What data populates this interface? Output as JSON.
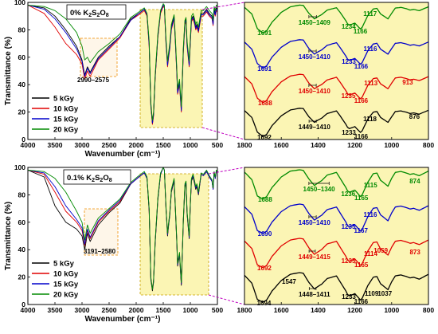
{
  "chart_data": [
    {
      "type": "line",
      "panel": "top-left",
      "title": "0% K2S2O8",
      "xlabel": "Wavenumber (cm⁻¹)",
      "ylabel": "Transmittance (%)",
      "xlim": [
        4000,
        500
      ],
      "ylim": [
        0,
        100
      ],
      "xticks": [
        4000,
        3500,
        3000,
        2500,
        2000,
        1500,
        1000,
        500
      ],
      "yticks": [
        0,
        20,
        40,
        60,
        80,
        100
      ],
      "box_label": "2990–2575",
      "x": [
        4000,
        3700,
        3500,
        3300,
        3100,
        3000,
        2950,
        2900,
        2850,
        2700,
        2500,
        2300,
        2100,
        1950,
        1850,
        1800,
        1760,
        1730,
        1700,
        1680,
        1650,
        1600,
        1550,
        1500,
        1480,
        1450,
        1420,
        1400,
        1380,
        1350,
        1300,
        1280,
        1250,
        1235,
        1200,
        1166,
        1130,
        1100,
        1080,
        1060,
        1020,
        1000,
        980,
        950,
        920,
        900,
        880,
        850,
        800,
        760,
        700,
        650,
        600,
        580,
        560,
        540,
        520,
        500
      ],
      "series": [
        {
          "name": "5 kGy",
          "color": "#000000",
          "values": [
            98,
            96,
            90,
            80,
            68,
            58,
            47,
            53,
            49,
            60,
            68,
            75,
            88,
            92,
            95,
            91,
            70,
            25,
            12,
            18,
            45,
            75,
            93,
            98,
            97,
            72,
            55,
            62,
            68,
            82,
            90,
            75,
            50,
            35,
            42,
            22,
            65,
            86,
            88,
            70,
            55,
            72,
            88,
            90,
            86,
            82,
            84,
            80,
            92,
            92,
            95,
            92,
            90,
            85,
            95,
            92,
            96,
            95
          ]
        },
        {
          "name": "10 kGy",
          "color": "#e00000",
          "values": [
            98,
            92,
            82,
            70,
            62,
            55,
            44,
            50,
            46,
            58,
            66,
            74,
            87,
            91,
            94,
            90,
            68,
            24,
            11,
            17,
            44,
            74,
            92,
            97,
            96,
            70,
            53,
            60,
            66,
            80,
            88,
            73,
            48,
            33,
            40,
            20,
            63,
            84,
            86,
            68,
            53,
            70,
            86,
            88,
            84,
            80,
            82,
            78,
            90,
            90,
            93,
            90,
            88,
            83,
            93,
            90,
            94,
            93
          ]
        },
        {
          "name": "15 kGy",
          "color": "#0000cc",
          "values": [
            98,
            95,
            88,
            78,
            66,
            57,
            46,
            52,
            48,
            59,
            67,
            75,
            87,
            92,
            95,
            91,
            69,
            25,
            12,
            18,
            45,
            75,
            93,
            98,
            97,
            71,
            54,
            61,
            67,
            81,
            89,
            74,
            49,
            34,
            41,
            21,
            64,
            85,
            87,
            69,
            54,
            71,
            87,
            89,
            85,
            81,
            83,
            79,
            91,
            91,
            94,
            91,
            89,
            84,
            94,
            91,
            95,
            94
          ]
        },
        {
          "name": "20 kGy",
          "color": "#008a00",
          "values": [
            98,
            97,
            94,
            88,
            78,
            68,
            58,
            60,
            56,
            64,
            70,
            77,
            89,
            93,
            96,
            92,
            72,
            27,
            14,
            20,
            47,
            77,
            94,
            99,
            98,
            74,
            57,
            64,
            70,
            84,
            91,
            77,
            52,
            37,
            44,
            24,
            67,
            87,
            89,
            72,
            57,
            74,
            90,
            92,
            88,
            84,
            86,
            82,
            94,
            94,
            97,
            94,
            92,
            87,
            97,
            94,
            98,
            97
          ]
        }
      ]
    },
    {
      "type": "line",
      "panel": "top-right",
      "xlim": [
        1800,
        800
      ],
      "xticks": [
        1800,
        1600,
        1400,
        1200,
        1000,
        800
      ],
      "annotations": [
        {
          "series": "20 kGy",
          "labels": [
            "1691",
            "1450–1409",
            "1234",
            "1166",
            "1117"
          ]
        },
        {
          "series": "15 kGy",
          "labels": [
            "1691",
            "1450–1410",
            "1233",
            "1166",
            "1116"
          ]
        },
        {
          "series": "10 kGy",
          "labels": [
            "1688",
            "1450–1410",
            "1235",
            "1166",
            "1113",
            "913"
          ]
        },
        {
          "series": "5 kGy",
          "labels": [
            "1692",
            "1449–1410",
            "1233",
            "1166",
            "1118",
            "876"
          ]
        }
      ]
    },
    {
      "type": "line",
      "panel": "bottom-left",
      "title": "0.1% K2S2O8",
      "xlabel": "Wavenumber (cm⁻¹)",
      "ylabel": "Transmittance (%)",
      "xlim": [
        4000,
        500
      ],
      "ylim": [
        0,
        100
      ],
      "xticks": [
        4000,
        3500,
        3000,
        2500,
        2000,
        1500,
        1000,
        500
      ],
      "yticks": [
        0,
        20,
        40,
        60,
        80,
        100
      ],
      "box_label": "3191–2580",
      "x": [
        4000,
        3700,
        3500,
        3300,
        3100,
        3000,
        2950,
        2900,
        2850,
        2700,
        2500,
        2300,
        2100,
        1950,
        1850,
        1800,
        1760,
        1730,
        1700,
        1680,
        1650,
        1600,
        1550,
        1500,
        1480,
        1450,
        1420,
        1400,
        1380,
        1350,
        1300,
        1280,
        1250,
        1235,
        1200,
        1166,
        1130,
        1100,
        1080,
        1060,
        1020,
        1000,
        980,
        950,
        920,
        900,
        880,
        850,
        800,
        760,
        700,
        650,
        600,
        580,
        560,
        540,
        520,
        500
      ],
      "series": [
        {
          "name": "5 kGy",
          "color": "#000000",
          "values": [
            98,
            93,
            72,
            60,
            55,
            50,
            40,
            52,
            46,
            58,
            67,
            74,
            88,
            93,
            96,
            92,
            68,
            18,
            10,
            16,
            44,
            76,
            95,
            100,
            98,
            70,
            50,
            58,
            65,
            82,
            90,
            72,
            45,
            28,
            36,
            14,
            60,
            86,
            88,
            66,
            48,
            72,
            90,
            93,
            88,
            84,
            86,
            80,
            95,
            94,
            97,
            93,
            90,
            84,
            96,
            92,
            97,
            96
          ]
        },
        {
          "name": "10 kGy",
          "color": "#e00000",
          "values": [
            98,
            95,
            82,
            68,
            60,
            54,
            43,
            54,
            48,
            60,
            68,
            75,
            88,
            93,
            96,
            92,
            69,
            19,
            11,
            17,
            45,
            77,
            95,
            100,
            98,
            71,
            51,
            59,
            66,
            83,
            91,
            73,
            46,
            29,
            37,
            15,
            61,
            87,
            89,
            67,
            49,
            73,
            91,
            94,
            89,
            85,
            87,
            81,
            95,
            94,
            97,
            93,
            90,
            84,
            96,
            92,
            97,
            96
          ]
        },
        {
          "name": "15 kGy",
          "color": "#0000cc",
          "values": [
            98,
            96,
            86,
            72,
            62,
            56,
            44,
            55,
            49,
            61,
            69,
            76,
            88,
            93,
            96,
            92,
            69,
            19,
            11,
            17,
            45,
            77,
            95,
            100,
            98,
            71,
            51,
            59,
            66,
            83,
            91,
            73,
            46,
            29,
            37,
            15,
            61,
            87,
            89,
            67,
            49,
            73,
            91,
            94,
            89,
            85,
            87,
            81,
            95,
            94,
            97,
            93,
            90,
            84,
            96,
            92,
            97,
            96
          ]
        },
        {
          "name": "20 kGy",
          "color": "#008a00",
          "values": [
            98,
            97,
            92,
            82,
            68,
            60,
            47,
            58,
            52,
            63,
            70,
            77,
            89,
            94,
            97,
            93,
            70,
            20,
            11,
            18,
            46,
            78,
            96,
            100,
            98,
            72,
            52,
            60,
            67,
            84,
            92,
            74,
            47,
            30,
            38,
            16,
            62,
            88,
            90,
            68,
            50,
            74,
            92,
            95,
            90,
            86,
            88,
            82,
            96,
            95,
            98,
            94,
            91,
            85,
            97,
            93,
            98,
            97
          ]
        }
      ]
    },
    {
      "type": "line",
      "panel": "bottom-right",
      "xlim": [
        1800,
        800
      ],
      "xticks": [
        1800,
        1600,
        1400,
        1200,
        1000,
        800
      ],
      "annotations": [
        {
          "series": "20 kGy",
          "labels": [
            "1688",
            "1450–1340",
            "1236",
            "1165",
            "1115",
            "874"
          ]
        },
        {
          "series": "15 kGy",
          "labels": [
            "1690",
            "1450–1410",
            "1235",
            "1167",
            "1116"
          ]
        },
        {
          "series": "10 kGy",
          "labels": [
            "1692",
            "1449–1415",
            "1235",
            "1165",
            "1114",
            "1059",
            "873"
          ]
        },
        {
          "series": "5 kGy",
          "labels": [
            "1694",
            "1547",
            "1448–1411",
            "1233",
            "1166",
            "1109",
            "1037"
          ]
        }
      ]
    }
  ],
  "legend": [
    "5 kGy",
    "10 kGy",
    "15 kGy",
    "20 kGy"
  ]
}
